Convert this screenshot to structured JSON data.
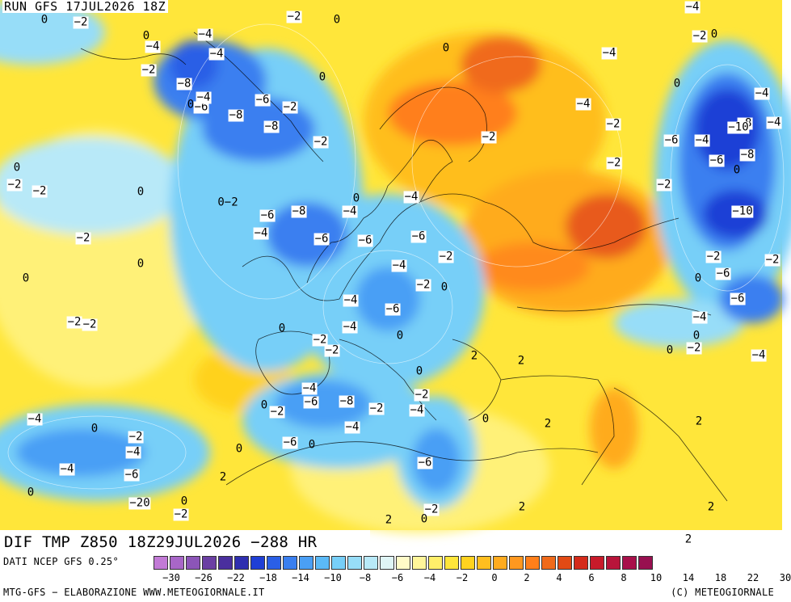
{
  "run_title": "RUN GFS 17JUL2026 18Z",
  "field_title": "DIF TMP Z850 18Z29JUL2026 −288 HR",
  "data_source": "DATI NCEP GFS 0.25°",
  "credits": "MTG-GFS − ELABORAZIONE WWW.METEOGIORNALE.IT",
  "copyright": "(C) METEOGIORNALE",
  "colors": {
    "cold_deep": "#1f3fd6",
    "cold": "#3a8ff0",
    "cool": "#8fd3f7",
    "neutral": "#fff59a",
    "warm": "#ffd21f",
    "hot": "#ffa21f",
    "very_hot": "#f06a1a",
    "swatches": [
      "#c27ad6",
      "#a866c8",
      "#8c55b8",
      "#6b3fa3",
      "#4a2f9e",
      "#2f2fb0",
      "#1f3fd6",
      "#2a5fe6",
      "#3a7ff0",
      "#4a9ff5",
      "#5bbaf7",
      "#77cff8",
      "#97ddf8",
      "#b8e9f8",
      "#dff5f6",
      "#fffbc8",
      "#fff59a",
      "#ffef6a",
      "#ffe63a",
      "#ffd21f",
      "#ffbe1f",
      "#ffab1f",
      "#ff981f",
      "#ff7f1a",
      "#f06a1a",
      "#e24a14",
      "#d42a1a",
      "#c81a2a",
      "#b8143a",
      "#a8104a",
      "#981050"
    ]
  },
  "scale_ticks": [
    "−30",
    "−26",
    "−22",
    "−18",
    "−14",
    "−10",
    "−8",
    "−6",
    "−4",
    "−2",
    "0",
    "2",
    "4",
    "6",
    "8",
    "10",
    "14",
    "18",
    "22",
    "30"
  ],
  "labels": [
    {
      "t": "0"
    },
    {
      "t": "0"
    },
    {
      "t": "0"
    },
    {
      "t": "−4"
    },
    {
      "t": "−2"
    },
    {
      "t": "−4"
    },
    {
      "t": "−2"
    },
    {
      "t": "−8"
    },
    {
      "t": "0"
    },
    {
      "t": "−6"
    },
    {
      "t": "−4"
    },
    {
      "t": "−4"
    },
    {
      "t": "−6"
    },
    {
      "t": "−8"
    },
    {
      "t": "−8"
    },
    {
      "t": "0"
    },
    {
      "t": "−2"
    },
    {
      "t": "−2"
    },
    {
      "t": "−2"
    },
    {
      "t": "0"
    },
    {
      "t": "0−2"
    },
    {
      "t": "−6"
    },
    {
      "t": "−8"
    },
    {
      "t": "−4"
    },
    {
      "t": "−2"
    },
    {
      "t": "−6"
    },
    {
      "t": "−4"
    },
    {
      "t": "−6"
    },
    {
      "t": "−6"
    },
    {
      "t": "0"
    },
    {
      "t": "−4"
    },
    {
      "t": "−2"
    },
    {
      "t": "0"
    },
    {
      "t": "−2"
    },
    {
      "t": "−4"
    },
    {
      "t": "−6"
    },
    {
      "t": "−4"
    },
    {
      "t": "−2"
    },
    {
      "t": "0"
    },
    {
      "t": "−2"
    },
    {
      "t": "0"
    },
    {
      "t": "0"
    },
    {
      "t": "0"
    },
    {
      "t": "−4"
    },
    {
      "t": "−2"
    },
    {
      "t": "0"
    },
    {
      "t": "−4"
    },
    {
      "t": "−2"
    },
    {
      "t": "−6"
    },
    {
      "t": "−8"
    },
    {
      "t": "−4"
    },
    {
      "t": "−2"
    },
    {
      "t": "0"
    },
    {
      "t": "−2"
    },
    {
      "t": "−4"
    },
    {
      "t": "−2"
    },
    {
      "t": "−4"
    },
    {
      "t": "0"
    },
    {
      "t": "−6"
    },
    {
      "t": "0"
    },
    {
      "t": "−6"
    },
    {
      "t": "−4"
    },
    {
      "t": "−2"
    },
    {
      "t": "−4"
    },
    {
      "t": "−6"
    },
    {
      "t": "0"
    },
    {
      "t": "−20"
    },
    {
      "t": "−2"
    },
    {
      "t": "0"
    },
    {
      "t": "2"
    },
    {
      "t": "2"
    },
    {
      "t": "2"
    },
    {
      "t": "0"
    },
    {
      "t": "2"
    },
    {
      "t": "0"
    },
    {
      "t": "−2"
    },
    {
      "t": "2"
    },
    {
      "t": "2"
    },
    {
      "t": "0"
    },
    {
      "t": "2"
    },
    {
      "t": "2"
    },
    {
      "t": "2"
    },
    {
      "t": "0"
    },
    {
      "t": "0"
    },
    {
      "t": "−2"
    },
    {
      "t": "−4"
    },
    {
      "t": "−2"
    },
    {
      "t": "−4"
    },
    {
      "t": "0"
    },
    {
      "t": "−2"
    },
    {
      "t": "−6"
    },
    {
      "t": "−4"
    },
    {
      "t": "−4"
    },
    {
      "t": "−2"
    },
    {
      "t": "−6"
    },
    {
      "t": "−4"
    },
    {
      "t": "0"
    },
    {
      "t": "−4"
    },
    {
      "t": "−2"
    },
    {
      "t": "−6"
    },
    {
      "t": "−8"
    },
    {
      "t": "−10"
    },
    {
      "t": "0"
    },
    {
      "t": "−10"
    },
    {
      "t": "−8"
    },
    {
      "t": "−6"
    },
    {
      "t": "−4"
    },
    {
      "t": "0"
    },
    {
      "t": "−2"
    },
    {
      "t": "−2"
    },
    {
      "t": "0"
    },
    {
      "t": "0"
    },
    {
      "t": "−2"
    },
    {
      "t": "−4"
    },
    {
      "t": "−2"
    },
    {
      "t": "−2"
    }
  ]
}
